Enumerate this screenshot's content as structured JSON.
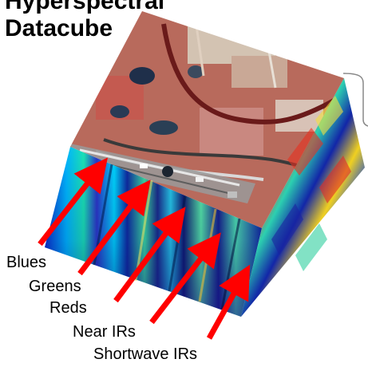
{
  "title": {
    "line1": "Hyperspectral",
    "line2": "Datacube"
  },
  "bands": [
    {
      "label": "Blues"
    },
    {
      "label": "Greens"
    },
    {
      "label": "Reds"
    },
    {
      "label": "Near IRs"
    },
    {
      "label": "Shortwave IRs"
    }
  ],
  "colors": {
    "arrow": "#ff0000",
    "text": "#000000",
    "background": "#ffffff"
  }
}
